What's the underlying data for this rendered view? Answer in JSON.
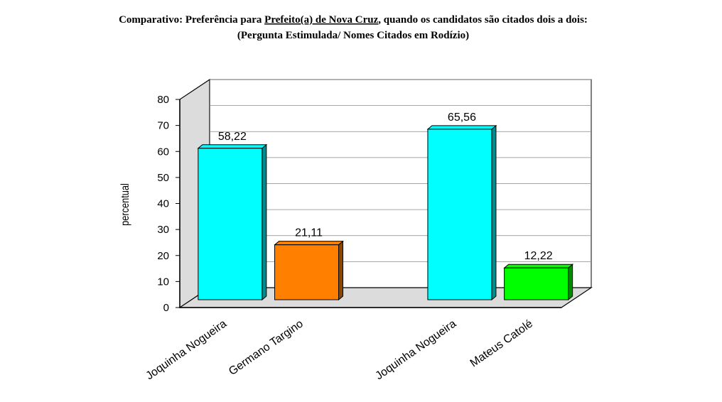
{
  "chart_data": {
    "type": "bar3d",
    "title_parts": [
      "Comparativo: Preferência para ",
      "Prefeito(a) de Nova Cruz",
      ", quando os candidatos são citados dois a dois:"
    ],
    "subtitle": "(Pergunta Estimulada/ Nomes Citados em Rodízio)",
    "y_label": "percentual",
    "categories": [
      "Joquinha Nogueira",
      "Germano Targino",
      null,
      "Joquinha Nogueira",
      "Mateus Catolé"
    ],
    "values": [
      58.22,
      21.11,
      null,
      65.56,
      12.22
    ],
    "value_labels": [
      "58,22",
      "21,11",
      null,
      "65,56",
      "12,22"
    ],
    "colors": [
      "#00ffff",
      "#ff8000",
      null,
      "#00ffff",
      "#00ff00"
    ],
    "ylim": [
      0,
      80
    ],
    "yticks": [
      0,
      10,
      20,
      30,
      40,
      50,
      60,
      70,
      80
    ],
    "grid": true
  }
}
